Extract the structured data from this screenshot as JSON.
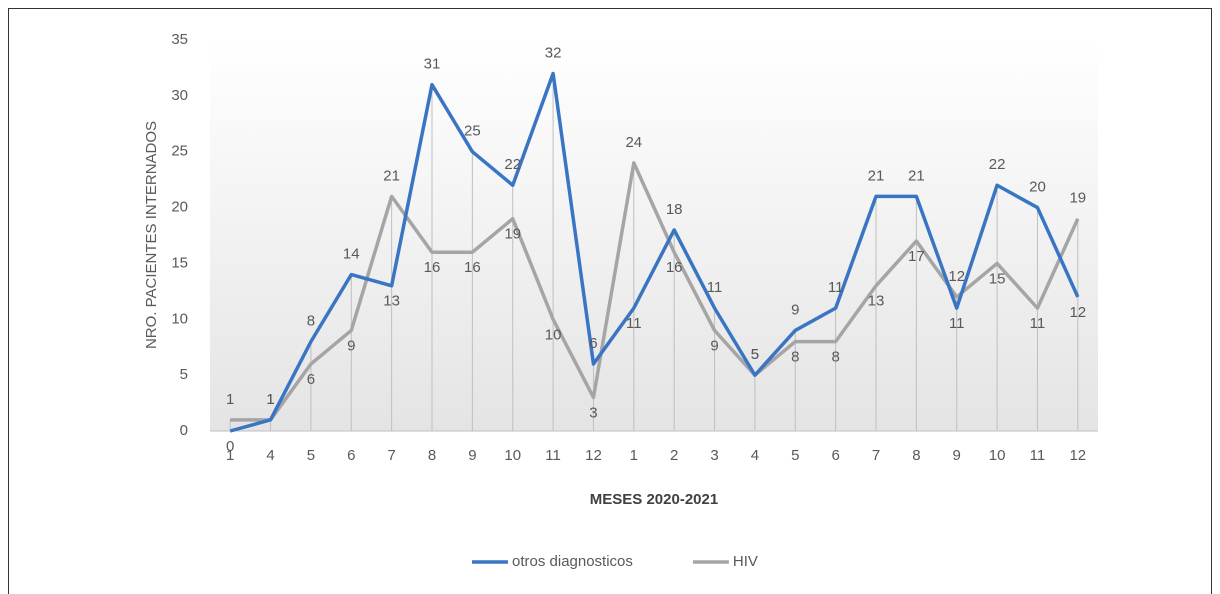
{
  "chart_data": {
    "type": "line",
    "x_label": "MESES 2020-2021",
    "y_label": "NRO. PACIENTES INTERNADOS",
    "categories": [
      "1",
      "4",
      "5",
      "6",
      "7",
      "8",
      "9",
      "10",
      "11",
      "12",
      "1",
      "2",
      "3",
      "4",
      "5",
      "6",
      "7",
      "8",
      "9",
      "10",
      "11",
      "12"
    ],
    "series": [
      {
        "name": "otros diagnosticos",
        "color": "#3a75c4",
        "values": [
          0,
          1,
          8,
          14,
          13,
          31,
          25,
          22,
          32,
          6,
          11,
          18,
          11,
          5,
          9,
          11,
          21,
          21,
          11,
          22,
          20,
          12
        ]
      },
      {
        "name": "HIV",
        "color": "#a5a5a5",
        "values": [
          1,
          1,
          6,
          9,
          21,
          16,
          16,
          19,
          10,
          3,
          24,
          16,
          9,
          5,
          8,
          8,
          13,
          17,
          12,
          15,
          11,
          19
        ]
      }
    ],
    "ylim": [
      0,
      35
    ],
    "yticks": [
      0,
      5,
      10,
      15,
      20,
      25,
      30,
      35
    ],
    "drop_lines": true,
    "legend": "bottom"
  }
}
